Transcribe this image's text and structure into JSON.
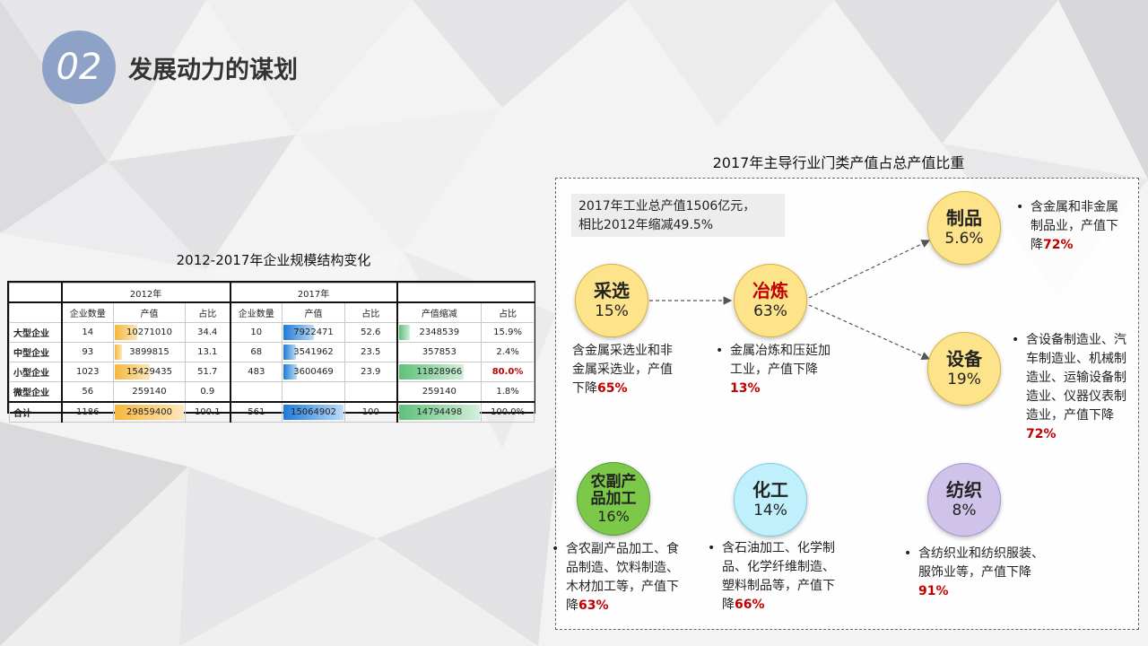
{
  "header": {
    "number": "02",
    "title": "发展动力的谋划"
  },
  "table": {
    "caption": "2012-2017年企业规模结构变化",
    "groups": [
      "2012年",
      "2017年"
    ],
    "subheaders": [
      "企业数量",
      "产值",
      "占比",
      "企业数量",
      "产值",
      "占比",
      "产值缩减",
      "占比"
    ],
    "rows": [
      {
        "label": "大型企业",
        "n12": "14",
        "v12": "10271010",
        "p12": "34.4",
        "n17": "10",
        "v17": "7922471",
        "p17": "52.6",
        "r": "2348539",
        "rp": "15.9%",
        "bar12": 0.344,
        "bar17": 0.526,
        "barr": 0.159
      },
      {
        "label": "中型企业",
        "n12": "93",
        "v12": "3899815",
        "p12": "13.1",
        "n17": "68",
        "v17": "3541962",
        "p17": "23.5",
        "r": "357853",
        "rp": "2.4%",
        "bar12": 0.131,
        "bar17": 0.235,
        "barr": 0.024
      },
      {
        "label": "小型企业",
        "n12": "1023",
        "v12": "15429435",
        "p12": "51.7",
        "n17": "483",
        "v17": "3600469",
        "p17": "23.9",
        "r": "11828966",
        "rp": "80.0%",
        "bar12": 0.517,
        "bar17": 0.239,
        "barr": 0.8
      },
      {
        "label": "微型企业",
        "n12": "56",
        "v12": "259140",
        "p12": "0.9",
        "n17": "",
        "v17": "",
        "p17": "",
        "r": "259140",
        "rp": "1.8%",
        "bar12": 0.009,
        "bar17": 0,
        "barr": 0.018
      },
      {
        "label": "合计",
        "n12": "1186",
        "v12": "29859400",
        "p12": "100.1",
        "n17": "561",
        "v17": "15064902",
        "p17": "100",
        "r": "14794498",
        "rp": "100.0%",
        "bar12": 1,
        "bar17": 1,
        "barr": 1
      }
    ],
    "colors": {
      "orange": "#f6b73c",
      "blue": "#1f7ad6",
      "green": "#5fc07a",
      "red": "#c00000"
    }
  },
  "panel": {
    "title": "2017年主导行业门类产值占总产值比重",
    "summary_line1": "2017年工业总产值1506亿元，",
    "summary_line2": "相比2012年缩减49.5%",
    "nodes": [
      {
        "name": "采选",
        "pct": "15%",
        "color": "#fde38a",
        "desc": [
          "含金属采选业和非",
          "金属采选业，产值",
          "下降"
        ],
        "desc_red": "65%"
      },
      {
        "name": "冶炼",
        "pct": "63%",
        "color": "#fde38a",
        "name_color": "#c00000",
        "desc": [
          "金属冶炼和压延加",
          "工业，产值下降"
        ],
        "desc_red": "13%"
      },
      {
        "name": "制品",
        "pct": "5.6%",
        "color": "#fde38a",
        "desc": [
          "含金属和非金属",
          "制品业，产值下",
          "降"
        ],
        "desc_red": "72%"
      },
      {
        "name": "设备",
        "pct": "19%",
        "color": "#fde38a",
        "desc": [
          "含设备制造业、汽",
          "车制造业、机械制",
          "造业、运输设备制",
          "造业、仪器仪表制",
          "造业，产值下降"
        ],
        "desc_red": "72%"
      },
      {
        "name_line1": "农副产",
        "name_line2": "品加工",
        "pct": "16%",
        "color": "#7cc94a",
        "desc": [
          "含农副产品加工、食",
          "品制造、饮料制造、",
          "木材加工等，产值下",
          "降"
        ],
        "desc_red": "63%"
      },
      {
        "name": "化工",
        "pct": "14%",
        "color": "#bff0fb",
        "desc": [
          "含石油加工、化学制",
          "品、化学纤维制造、",
          "塑料制品等，产值下",
          "降"
        ],
        "desc_red": "66%"
      },
      {
        "name": "纺织",
        "pct": "8%",
        "color": "#cfc3ea",
        "desc": [
          "含纺织业和纺织服装、",
          "服饰业等，产值下降"
        ],
        "desc_red": "91%"
      }
    ]
  }
}
